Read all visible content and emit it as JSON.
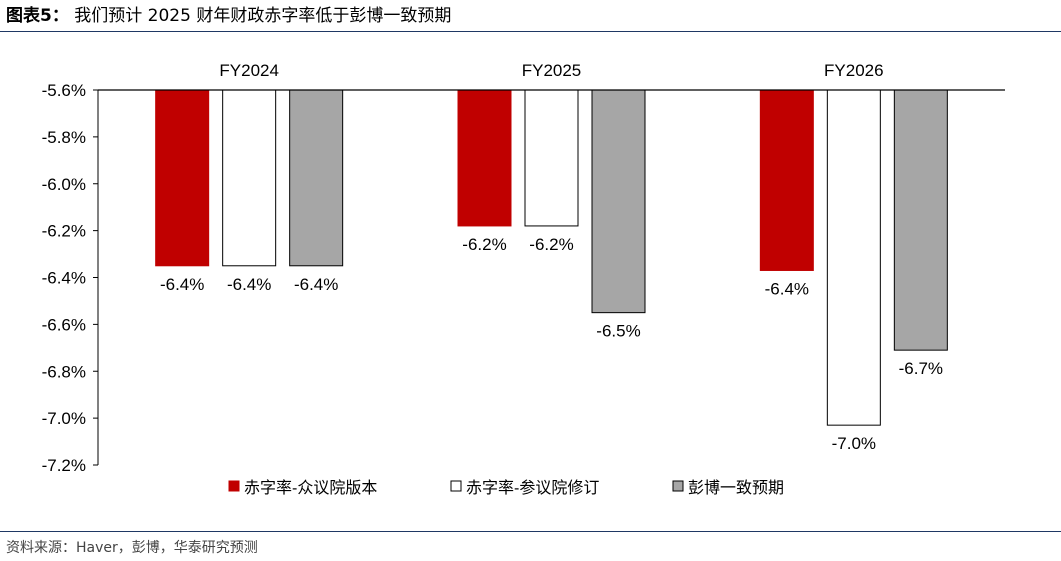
{
  "figure": {
    "label": "图表5：",
    "title": "我们预计 2025 财年财政赤字率低于彭博一致预期",
    "source": "资料来源：Haver，彭博，华泰研究预测"
  },
  "chart_data": {
    "type": "bar",
    "categories": [
      "FY2024",
      "FY2025",
      "FY2026"
    ],
    "series": [
      {
        "name": "赤字率-众议院版本",
        "values": [
          -6.35,
          -6.18,
          -6.37
        ],
        "labels": [
          "-6.4%",
          "-6.2%",
          "-6.4%"
        ],
        "fill": "#c00000",
        "stroke": "#c00000"
      },
      {
        "name": "赤字率-参议院修订",
        "values": [
          -6.35,
          -6.18,
          -7.03
        ],
        "labels": [
          "-6.4%",
          "-6.2%",
          "-7.0%"
        ],
        "fill": "#ffffff",
        "stroke": "#000000"
      },
      {
        "name": "彭博一致预期",
        "values": [
          -6.35,
          -6.55,
          -6.71
        ],
        "labels": [
          "-6.4%",
          "-6.5%",
          "-6.7%"
        ],
        "fill": "#a6a6a6",
        "stroke": "#000000"
      }
    ],
    "ylim": [
      -7.2,
      -5.6
    ],
    "yticks": [
      -5.6,
      -5.8,
      -6.0,
      -6.2,
      -6.4,
      -6.6,
      -6.8,
      -7.0,
      -7.2
    ],
    "ytick_labels": [
      "-5.6%",
      "-5.8%",
      "-6.0%",
      "-6.2%",
      "-6.4%",
      "-6.6%",
      "-6.8%",
      "-7.0%",
      "-7.2%"
    ],
    "category_label_position": "top",
    "legend_position": "bottom",
    "grid": false
  }
}
